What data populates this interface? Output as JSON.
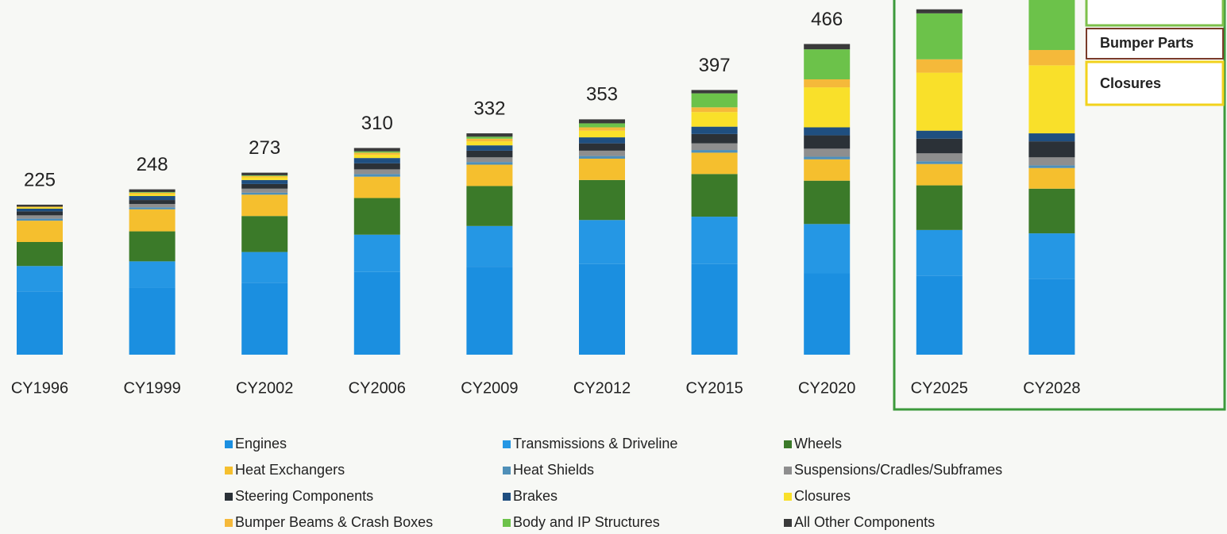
{
  "chart_data": {
    "type": "bar",
    "stacked": true,
    "legend": "bottom",
    "categories": [
      "CY1996",
      "CY1999",
      "CY2002",
      "CY2006",
      "CY2009",
      "CY2012",
      "CY2015",
      "CY2020",
      "CY2025",
      "CY2028"
    ],
    "ylim": [
      0,
      532
    ],
    "totals": [
      225,
      248,
      273,
      310,
      332,
      353,
      397,
      466,
      null,
      null
    ],
    "annotations": [
      "Bumper Parts",
      "Closures"
    ],
    "series": [
      {
        "name": "Engines",
        "color": "#1b8fe0",
        "values": [
          95,
          100,
          108,
          124,
          132,
          136,
          136,
          122,
          118,
          114
        ]
      },
      {
        "name": "Transmissions & Driveline",
        "color": "#2597e4",
        "values": [
          38,
          40,
          46,
          56,
          61,
          66,
          71,
          74,
          69,
          68
        ]
      },
      {
        "name": "Wheels",
        "color": "#3b7a29",
        "values": [
          36,
          45,
          54,
          55,
          60,
          60,
          64,
          65,
          67,
          67
        ]
      },
      {
        "name": "Heat Exchangers",
        "color": "#f5bf2e",
        "values": [
          32,
          33,
          32,
          32,
          32,
          32,
          32,
          32,
          32,
          31
        ]
      },
      {
        "name": "Heat Shields",
        "color": "#4f8fb8",
        "values": [
          3,
          3,
          3,
          4,
          4,
          4,
          4,
          4,
          4,
          4
        ]
      },
      {
        "name": "Suspensions/Cradles/Subframes",
        "color": "#8e8e8e",
        "values": [
          5,
          5,
          6,
          7,
          7,
          8,
          10,
          12,
          12,
          12
        ]
      },
      {
        "name": "Steering Components",
        "color": "#2b3137",
        "values": [
          6,
          6,
          7,
          9,
          10,
          11,
          14,
          20,
          22,
          24
        ]
      },
      {
        "name": "Brakes",
        "color": "#1f4f80",
        "values": [
          4,
          6,
          6,
          8,
          8,
          9,
          11,
          12,
          12,
          12
        ]
      },
      {
        "name": "Closures",
        "color": "#f9e02a",
        "values": [
          2,
          3,
          4,
          5,
          6,
          10,
          22,
          60,
          87,
          102
        ]
      },
      {
        "name": "Bumper Beams & Crash Boxes",
        "color": "#f5b93a",
        "values": [
          1,
          2,
          2,
          3,
          4,
          5,
          7,
          12,
          20,
          23
        ]
      },
      {
        "name": "Body and IP Structures",
        "color": "#6cc24a",
        "values": [
          0,
          1,
          1,
          2,
          3,
          6,
          21,
          45,
          69,
          80
        ]
      },
      {
        "name": "All Other Components",
        "color": "#3a3a3a",
        "values": [
          3,
          4,
          4,
          5,
          5,
          6,
          5,
          8,
          6,
          5
        ]
      }
    ]
  }
}
